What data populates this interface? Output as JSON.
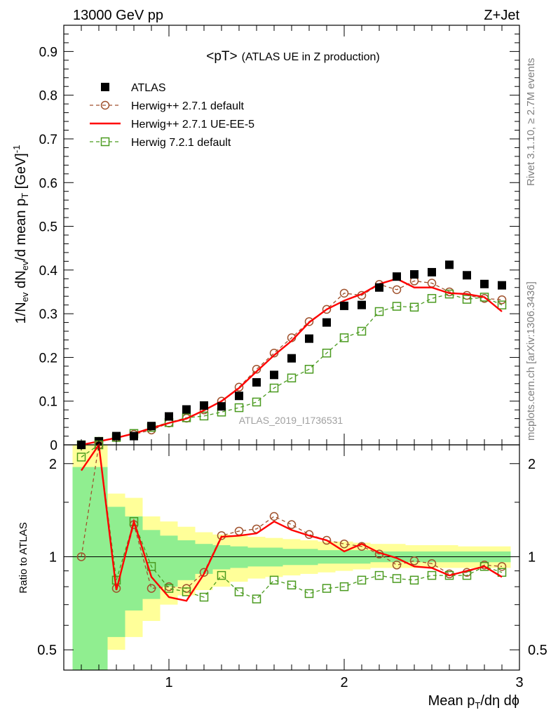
{
  "header": {
    "left": "13000 GeV pp",
    "right": "Z+Jet",
    "title_main": "<pT>",
    "title_sub": "(ATLAS UE in Z production)"
  },
  "side": {
    "rivet": "Rivet 3.1.10, ≥ 2.7M events",
    "mcplots": "mcplots.cern.ch [arXiv:1306.3436]"
  },
  "watermark": "ATLAS_2019_I1736531",
  "axes": {
    "ylabel_top": "1/N_ev dN_ev/d mean p_T [GeV]^-1",
    "ylabel_bottom": "Ratio to ATLAS",
    "xlabel": "Mean p_T/dη dϕ"
  },
  "colors": {
    "atlas": "#000000",
    "herwig_default": "#a0522d",
    "herwig_ueee5": "#ff0000",
    "herwig7": "#4a9a1f",
    "band_inner": "#90ee90",
    "band_outer": "#ffff99"
  },
  "chart_data": [
    {
      "type": "scatter",
      "title": "<pT> (ATLAS UE in Z production)",
      "xlabel": "Mean p_T/dη dϕ",
      "ylabel": "1/N_ev dN_ev/d mean p_T [GeV]^-1",
      "xlim": [
        0.4,
        3.0
      ],
      "ylim": [
        0,
        0.96
      ],
      "xticks": [
        1,
        2,
        3
      ],
      "yticks": [
        0,
        0.1,
        0.2,
        0.3,
        0.4,
        0.5,
        0.6,
        0.7,
        0.8,
        0.9
      ],
      "ytick_labels": [
        "0",
        "0.1",
        "0.2",
        "0.3",
        "0.4",
        "0.5",
        "0.6",
        "0.7",
        "0.8",
        "0.9"
      ],
      "legend_position": "top-left",
      "x": [
        0.5,
        0.6,
        0.7,
        0.8,
        0.9,
        1.0,
        1.1,
        1.2,
        1.3,
        1.4,
        1.5,
        1.6,
        1.7,
        1.8,
        1.9,
        2.0,
        2.1,
        2.2,
        2.3,
        2.4,
        2.5,
        2.6,
        2.7,
        2.8,
        2.9
      ],
      "series": [
        {
          "name": "ATLAS",
          "style": "square-filled",
          "values": [
            0.0,
            0.008,
            0.02,
            0.02,
            0.043,
            0.065,
            0.081,
            0.09,
            0.088,
            0.112,
            0.143,
            0.16,
            0.198,
            0.243,
            0.28,
            0.318,
            0.32,
            0.36,
            0.385,
            0.39,
            0.395,
            0.412,
            0.388,
            0.368,
            0.365
          ]
        },
        {
          "name": "Herwig++ 2.7.1 default",
          "style": "circle-dashed",
          "values": [
            0.0,
            0.008,
            0.017,
            0.024,
            0.034,
            0.05,
            0.061,
            0.08,
            0.1,
            0.132,
            0.173,
            0.21,
            0.245,
            0.282,
            0.31,
            0.347,
            0.342,
            0.367,
            0.355,
            0.375,
            0.37,
            0.35,
            0.342,
            0.335,
            0.332
          ]
        },
        {
          "name": "Herwig++ 2.7.1 UE-EE-5",
          "style": "line-solid",
          "values": [
            0.0,
            0.008,
            0.016,
            0.026,
            0.038,
            0.05,
            0.06,
            0.079,
            0.1,
            0.13,
            0.168,
            0.205,
            0.238,
            0.28,
            0.31,
            0.33,
            0.345,
            0.368,
            0.38,
            0.36,
            0.36,
            0.347,
            0.345,
            0.338,
            0.305
          ]
        },
        {
          "name": "Herwig 7.2.1 default",
          "style": "square-dashed",
          "values": [
            0.0,
            0.008,
            0.017,
            0.026,
            0.04,
            0.051,
            0.062,
            0.066,
            0.075,
            0.085,
            0.098,
            0.13,
            0.153,
            0.173,
            0.21,
            0.245,
            0.26,
            0.305,
            0.317,
            0.315,
            0.335,
            0.345,
            0.333,
            0.338,
            0.32
          ]
        }
      ]
    },
    {
      "type": "line",
      "ylabel": "Ratio to ATLAS",
      "xlim": [
        0.4,
        3.0
      ],
      "ylim": [
        0.43,
        2.3
      ],
      "ylog": true,
      "reference_line": 1,
      "yticks": [
        0.5,
        1,
        2
      ],
      "ytick_labels": [
        "0.5",
        "1",
        "2"
      ],
      "xticks": [
        1,
        2,
        3
      ],
      "xtick_labels": [
        "1",
        "2",
        "3"
      ],
      "bins": [
        0.45,
        0.55,
        0.65,
        0.75,
        0.85,
        0.95,
        1.05,
        1.15,
        1.25,
        1.35,
        1.45,
        1.55,
        1.65,
        1.75,
        1.85,
        1.95,
        2.05,
        2.15,
        2.25,
        2.35,
        2.45,
        2.55,
        2.65,
        2.75,
        2.85,
        2.95
      ],
      "band_inner": {
        "low": [
          0.4,
          0.4,
          0.55,
          0.67,
          0.73,
          0.8,
          0.84,
          0.88,
          0.91,
          0.92,
          0.93,
          0.93,
          0.94,
          0.94,
          0.95,
          0.95,
          0.95,
          0.96,
          0.96,
          0.96,
          0.96,
          0.96,
          0.96,
          0.96,
          0.96
        ],
        "high": [
          1.95,
          1.95,
          1.45,
          1.35,
          1.22,
          1.17,
          1.13,
          1.1,
          1.09,
          1.08,
          1.07,
          1.07,
          1.06,
          1.06,
          1.05,
          1.05,
          1.05,
          1.04,
          1.04,
          1.04,
          1.04,
          1.04,
          1.04,
          1.04,
          1.04
        ]
      },
      "band_outer": {
        "low": [
          0.4,
          0.4,
          0.5,
          0.55,
          0.62,
          0.7,
          0.75,
          0.78,
          0.8,
          0.83,
          0.85,
          0.86,
          0.87,
          0.88,
          0.89,
          0.9,
          0.91,
          0.92,
          0.92,
          0.92,
          0.92,
          0.92,
          0.92,
          0.92,
          0.92
        ],
        "high": [
          2.3,
          2.3,
          1.6,
          1.55,
          1.35,
          1.3,
          1.25,
          1.2,
          1.18,
          1.17,
          1.16,
          1.15,
          1.14,
          1.13,
          1.12,
          1.12,
          1.11,
          1.1,
          1.1,
          1.09,
          1.09,
          1.09,
          1.08,
          1.08,
          1.08
        ]
      },
      "x": [
        0.5,
        0.6,
        0.7,
        0.8,
        0.9,
        1.0,
        1.1,
        1.2,
        1.3,
        1.4,
        1.5,
        1.6,
        1.7,
        1.8,
        1.9,
        2.0,
        2.1,
        2.2,
        2.3,
        2.4,
        2.5,
        2.6,
        2.7,
        2.8,
        2.9
      ],
      "series": [
        {
          "name": "Herwig++ 2.7.1 default",
          "style": "circle-dashed",
          "values": [
            1.0,
            2.5,
            0.79,
            1.27,
            0.79,
            0.8,
            0.79,
            0.89,
            1.17,
            1.21,
            1.23,
            1.35,
            1.27,
            1.18,
            1.13,
            1.1,
            1.08,
            1.02,
            0.94,
            0.97,
            0.95,
            0.88,
            0.89,
            0.94,
            0.93
          ]
        },
        {
          "name": "Herwig++ 2.7.1 UE-EE-5",
          "style": "line-solid",
          "values": [
            1.9,
            2.5,
            0.78,
            1.3,
            0.86,
            0.74,
            0.72,
            0.88,
            1.16,
            1.17,
            1.19,
            1.3,
            1.22,
            1.17,
            1.13,
            1.04,
            1.1,
            1.03,
            0.99,
            0.93,
            0.92,
            0.87,
            0.9,
            0.93,
            0.86
          ]
        },
        {
          "name": "Herwig 7.2.1 default",
          "style": "square-dashed",
          "values": [
            2.1,
            2.5,
            0.84,
            1.3,
            0.93,
            0.79,
            0.77,
            0.74,
            0.87,
            0.77,
            0.73,
            0.84,
            0.81,
            0.76,
            0.79,
            0.8,
            0.84,
            0.87,
            0.85,
            0.84,
            0.87,
            0.87,
            0.87,
            0.93,
            0.89
          ]
        }
      ]
    }
  ]
}
